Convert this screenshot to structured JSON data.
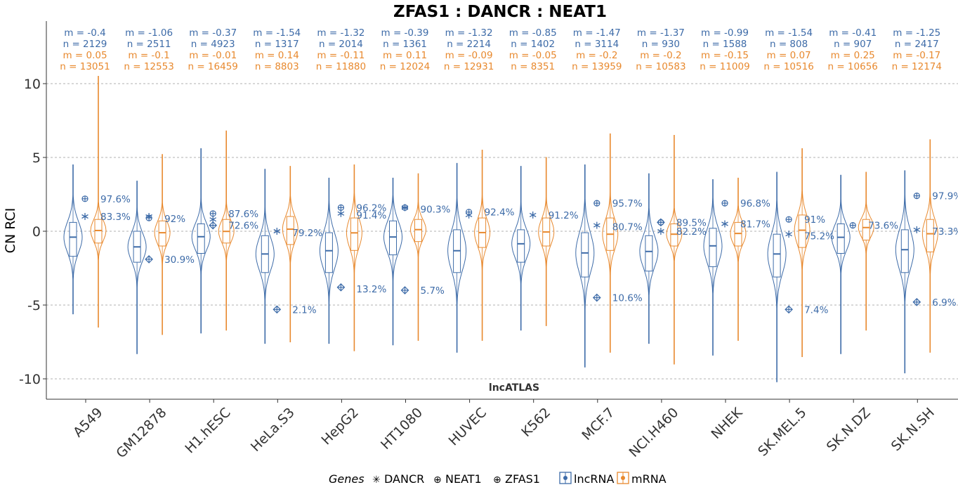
{
  "chart_data": {
    "type": "violin",
    "title": "ZFAS1 : DANCR : NEAT1",
    "ylabel": "CN RCI",
    "annotation": "lncATLAS",
    "ylim": [
      -11,
      14
    ],
    "yticks": [
      10,
      5,
      0,
      -5,
      -10
    ],
    "ytick_labels": [
      "10",
      "5",
      "0",
      "-5",
      "-10"
    ],
    "grid": "horizontal dashed",
    "colors": {
      "lncRNA": "#3d6ba8",
      "mRNA": "#e8892e"
    },
    "legend": {
      "placement": "bottom",
      "title": "Genes",
      "genes": [
        {
          "label": "DANCR",
          "symbol": "✳"
        },
        {
          "label": "NEAT1",
          "symbol": "⊕"
        },
        {
          "label": "ZFAS1",
          "symbol": "⊕"
        }
      ],
      "types": [
        {
          "label": "lncRNA",
          "color": "#3d6ba8"
        },
        {
          "label": "mRNA",
          "color": "#e8892e"
        }
      ]
    },
    "categories": [
      "A549",
      "GM12878",
      "H1.hESC",
      "HeLa.S3",
      "HepG2",
      "HT1080",
      "HUVEC",
      "K562",
      "MCF.7",
      "NCI.H460",
      "NHEK",
      "SK.MEL.5",
      "SK.N.DZ",
      "SK.N.SH"
    ],
    "stats": [
      {
        "lnc_m": "m = -0.4",
        "lnc_n": "n = 2129",
        "mrna_m": "m = 0.05",
        "mrna_n": "n = 13051"
      },
      {
        "lnc_m": "m = -1.06",
        "lnc_n": "n = 2511",
        "mrna_m": "m = -0.1",
        "mrna_n": "n = 12553"
      },
      {
        "lnc_m": "m = -0.37",
        "lnc_n": "n = 4923",
        "mrna_m": "m = -0.01",
        "mrna_n": "n = 16459"
      },
      {
        "lnc_m": "m = -1.54",
        "lnc_n": "n = 1317",
        "mrna_m": "m = 0.14",
        "mrna_n": "n = 8803"
      },
      {
        "lnc_m": "m = -1.32",
        "lnc_n": "n = 2014",
        "mrna_m": "m = -0.11",
        "mrna_n": "n = 11880"
      },
      {
        "lnc_m": "m = -0.39",
        "lnc_n": "n = 1361",
        "mrna_m": "m = 0.11",
        "mrna_n": "n = 12024"
      },
      {
        "lnc_m": "m = -1.32",
        "lnc_n": "n = 2214",
        "mrna_m": "m = -0.09",
        "mrna_n": "n = 12931"
      },
      {
        "lnc_m": "m = -0.85",
        "lnc_n": "n = 1402",
        "mrna_m": "m = -0.05",
        "mrna_n": "n = 8351"
      },
      {
        "lnc_m": "m = -1.47",
        "lnc_n": "n = 3114",
        "mrna_m": "m = -0.2",
        "mrna_n": "n = 13959"
      },
      {
        "lnc_m": "m = -1.37",
        "lnc_n": "n = 930",
        "mrna_m": "m = -0.2",
        "mrna_n": "n = 10583"
      },
      {
        "lnc_m": "m = -0.99",
        "lnc_n": "n = 1588",
        "mrna_m": "m = -0.15",
        "mrna_n": "n = 11009"
      },
      {
        "lnc_m": "m = -1.54",
        "lnc_n": "n = 808",
        "mrna_m": "m = 0.07",
        "mrna_n": "n = 10516"
      },
      {
        "lnc_m": "m = -0.41",
        "lnc_n": "n = 907",
        "mrna_m": "m = 0.25",
        "mrna_n": "n = 10656"
      },
      {
        "lnc_m": "m = -1.25",
        "lnc_n": "n = 2417",
        "mrna_m": "m = -0.17",
        "mrna_n": "n = 12174"
      }
    ],
    "distributions": {
      "lncRNA": [
        {
          "min": -5.6,
          "q1": -1.7,
          "median": -0.4,
          "q3": 0.6,
          "max": 4.5
        },
        {
          "min": -8.3,
          "q1": -2.1,
          "median": -1.06,
          "q3": 0.0,
          "max": 3.4
        },
        {
          "min": -6.9,
          "q1": -1.5,
          "median": -0.37,
          "q3": 0.5,
          "max": 5.6
        },
        {
          "min": -7.6,
          "q1": -2.8,
          "median": -1.54,
          "q3": -0.3,
          "max": 4.2
        },
        {
          "min": -7.6,
          "q1": -2.8,
          "median": -1.32,
          "q3": -0.1,
          "max": 3.6
        },
        {
          "min": -7.7,
          "q1": -1.6,
          "median": -0.39,
          "q3": 0.7,
          "max": 3.6
        },
        {
          "min": -8.2,
          "q1": -2.8,
          "median": -1.32,
          "q3": 0.1,
          "max": 4.6
        },
        {
          "min": -6.7,
          "q1": -2.1,
          "median": -0.85,
          "q3": 0.1,
          "max": 4.4
        },
        {
          "min": -9.2,
          "q1": -3.1,
          "median": -1.47,
          "q3": -0.1,
          "max": 4.5
        },
        {
          "min": -7.6,
          "q1": -2.7,
          "median": -1.37,
          "q3": -0.3,
          "max": 3.9
        },
        {
          "min": -8.4,
          "q1": -2.4,
          "median": -0.99,
          "q3": 0.2,
          "max": 3.5
        },
        {
          "min": -10.2,
          "q1": -3.1,
          "median": -1.54,
          "q3": -0.2,
          "max": 4.0
        },
        {
          "min": -8.3,
          "q1": -1.5,
          "median": -0.41,
          "q3": 0.5,
          "max": 3.8
        },
        {
          "min": -9.6,
          "q1": -2.8,
          "median": -1.25,
          "q3": 0.1,
          "max": 4.1
        }
      ],
      "mRNA": [
        {
          "min": -6.5,
          "q1": -0.8,
          "median": 0.05,
          "q3": 0.8,
          "max": 10.5
        },
        {
          "min": -7.0,
          "q1": -1.0,
          "median": -0.1,
          "q3": 0.7,
          "max": 5.2
        },
        {
          "min": -6.7,
          "q1": -0.8,
          "median": -0.01,
          "q3": 0.8,
          "max": 6.8
        },
        {
          "min": -7.5,
          "q1": -0.9,
          "median": 0.14,
          "q3": 1.0,
          "max": 4.4
        },
        {
          "min": -8.1,
          "q1": -1.3,
          "median": -0.11,
          "q3": 0.9,
          "max": 4.5
        },
        {
          "min": -7.4,
          "q1": -0.7,
          "median": 0.11,
          "q3": 0.8,
          "max": 3.9
        },
        {
          "min": -7.4,
          "q1": -1.1,
          "median": -0.09,
          "q3": 0.9,
          "max": 5.5
        },
        {
          "min": -6.4,
          "q1": -1.0,
          "median": -0.05,
          "q3": 0.9,
          "max": 5.0
        },
        {
          "min": -8.2,
          "q1": -1.3,
          "median": -0.2,
          "q3": 0.9,
          "max": 6.6
        },
        {
          "min": -9.0,
          "q1": -1.0,
          "median": -0.2,
          "q3": 0.5,
          "max": 6.5
        },
        {
          "min": -7.4,
          "q1": -1.0,
          "median": -0.15,
          "q3": 0.6,
          "max": 3.6
        },
        {
          "min": -8.5,
          "q1": -1.1,
          "median": 0.07,
          "q3": 1.1,
          "max": 5.6
        },
        {
          "min": -6.7,
          "q1": -0.6,
          "median": 0.25,
          "q3": 0.8,
          "max": 4.0
        },
        {
          "min": -8.2,
          "q1": -1.4,
          "median": -0.17,
          "q3": 0.8,
          "max": 6.2
        }
      ]
    },
    "gene_points": [
      {
        "lnc": [
          {
            "gene": "DANCR",
            "y": 1.0
          },
          {
            "gene": "ZFAS1",
            "y": 2.2
          }
        ],
        "mrna_pct": [
          {
            "label": "97.6%",
            "y": 2.2
          },
          {
            "label": "83.3%",
            "y": 1.0
          }
        ]
      },
      {
        "lnc": [
          {
            "gene": "DANCR",
            "y": 1.0
          },
          {
            "gene": "ZFAS1",
            "y": 0.9
          },
          {
            "gene": "NEAT1",
            "y": -1.9
          }
        ],
        "mrna_pct": [
          {
            "label": "92%",
            "y": 0.85
          },
          {
            "label": "30.9%",
            "y": -1.9
          }
        ]
      },
      {
        "lnc": [
          {
            "gene": "ZFAS1",
            "y": 1.2
          },
          {
            "gene": "DANCR",
            "y": 0.8
          },
          {
            "gene": "NEAT1",
            "y": 0.4
          }
        ],
        "mrna_pct": [
          {
            "label": "87.6%",
            "y": 1.2
          },
          {
            "label": "72.6%",
            "y": 0.4
          }
        ]
      },
      {
        "lnc": [
          {
            "gene": "DANCR",
            "y": 0.0
          },
          {
            "gene": "NEAT1",
            "y": -5.3
          }
        ],
        "mrna_pct": [
          {
            "label": "79.2%",
            "y": -0.1
          },
          {
            "label": "2.1%",
            "y": -5.3
          }
        ]
      },
      {
        "lnc": [
          {
            "gene": "ZFAS1",
            "y": 1.6
          },
          {
            "gene": "DANCR",
            "y": 1.2
          },
          {
            "gene": "NEAT1",
            "y": -3.8
          }
        ],
        "mrna_pct": [
          {
            "label": "96.2%",
            "y": 1.6
          },
          {
            "label": "91.4%",
            "y": 1.1
          },
          {
            "label": "13.2%",
            "y": -3.9
          }
        ]
      },
      {
        "lnc": [
          {
            "gene": "ZFAS1",
            "y": 1.6
          },
          {
            "gene": "DANCR",
            "y": 1.6
          },
          {
            "gene": "NEAT1",
            "y": -4.0
          }
        ],
        "mrna_pct": [
          {
            "label": "90.3%",
            "y": 1.5
          },
          {
            "label": "5.7%",
            "y": -4.0
          }
        ]
      },
      {
        "lnc": [
          {
            "gene": "ZFAS1",
            "y": 1.3
          },
          {
            "gene": "DANCR",
            "y": 1.1
          }
        ],
        "mrna_pct": [
          {
            "label": "92.4%",
            "y": 1.3
          }
        ]
      },
      {
        "lnc": [
          {
            "gene": "DANCR",
            "y": 1.1
          }
        ],
        "mrna_pct": [
          {
            "label": "91.2%",
            "y": 1.1
          }
        ]
      },
      {
        "lnc": [
          {
            "gene": "ZFAS1",
            "y": 1.9
          },
          {
            "gene": "DANCR",
            "y": 0.4
          },
          {
            "gene": "NEAT1",
            "y": -4.5
          }
        ],
        "mrna_pct": [
          {
            "label": "95.7%",
            "y": 1.9
          },
          {
            "label": "80.7%",
            "y": 0.3
          },
          {
            "label": "10.6%",
            "y": -4.5
          }
        ]
      },
      {
        "lnc": [
          {
            "gene": "NEAT1",
            "y": 0.6
          },
          {
            "gene": "ZFAS1",
            "y": 0.6
          },
          {
            "gene": "DANCR",
            "y": 0.0
          }
        ],
        "mrna_pct": [
          {
            "label": "89.5%",
            "y": 0.6
          },
          {
            "label": "82.2%",
            "y": 0.0
          }
        ]
      },
      {
        "lnc": [
          {
            "gene": "ZFAS1",
            "y": 1.9
          },
          {
            "gene": "DANCR",
            "y": 0.5
          }
        ],
        "mrna_pct": [
          {
            "label": "96.8%",
            "y": 1.9
          },
          {
            "label": "81.7%",
            "y": 0.5
          }
        ]
      },
      {
        "lnc": [
          {
            "gene": "ZFAS1",
            "y": 0.8
          },
          {
            "gene": "DANCR",
            "y": -0.2
          },
          {
            "gene": "NEAT1",
            "y": -5.3
          }
        ],
        "mrna_pct": [
          {
            "label": "91%",
            "y": 0.8
          },
          {
            "label": "75.2%",
            "y": -0.3
          },
          {
            "label": "7.4%",
            "y": -5.3
          }
        ]
      },
      {
        "lnc": [
          {
            "gene": "ZFAS1",
            "y": 0.4
          }
        ],
        "mrna_pct": [
          {
            "label": "73.6%",
            "y": 0.4
          }
        ]
      },
      {
        "lnc": [
          {
            "gene": "ZFAS1",
            "y": 2.4
          },
          {
            "gene": "DANCR",
            "y": 0.1
          },
          {
            "gene": "NEAT1",
            "y": -4.8
          }
        ],
        "mrna_pct": [
          {
            "label": "97.9%",
            "y": 2.4
          },
          {
            "label": "73.3%",
            "y": 0.0
          },
          {
            "label": "6.9%",
            "y": -4.8
          }
        ]
      }
    ]
  }
}
